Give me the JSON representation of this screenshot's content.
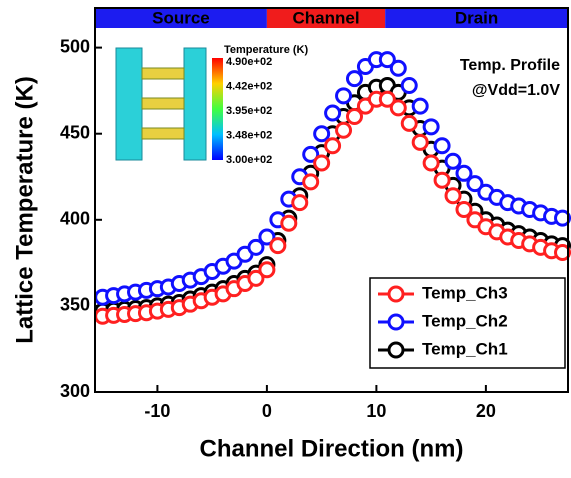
{
  "chart_data": {
    "type": "scatter",
    "x_label": "Channel Direction (nm)",
    "y_label": "Lattice Temperature (K)",
    "xlim": [
      -15.7,
      27.5
    ],
    "ylim": [
      300,
      523
    ],
    "xticks": [
      -10,
      0,
      10,
      20
    ],
    "yticks": [
      300,
      350,
      400,
      450,
      500
    ],
    "regions": [
      {
        "label": "Source",
        "color": "#1c1cf0",
        "x": [
          -15.7,
          0
        ]
      },
      {
        "label": "Channel",
        "color": "#f01c1c",
        "x": [
          0,
          10.8
        ]
      },
      {
        "label": "Drain",
        "color": "#1c1cf0",
        "x": [
          10.8,
          27.5
        ]
      }
    ],
    "annotation": [
      "Temp. Profile",
      "@Vdd=1.0V"
    ],
    "inset": {
      "title": "Temperature (K)",
      "colorbar_labels": [
        "4.90e+02",
        "4.42e+02",
        "3.95e+02",
        "3.48e+02",
        "3.00e+02"
      ]
    },
    "legend": "lower right",
    "x": [
      -15,
      -14,
      -13,
      -12,
      -11,
      -10,
      -9,
      -8,
      -7,
      -6,
      -5,
      -4,
      -3,
      -2,
      -1,
      0,
      1,
      2,
      3,
      4,
      5,
      6,
      7,
      8,
      9,
      10,
      11,
      12,
      13,
      14,
      15,
      16,
      17,
      18,
      19,
      20,
      21,
      22,
      23,
      24,
      25,
      26,
      27
    ],
    "series": [
      {
        "name": "Temp_Ch3",
        "color": "#ff2020",
        "values": [
          344,
          344.5,
          345,
          345.5,
          346,
          347,
          348,
          349,
          351,
          353,
          355,
          357,
          360,
          363,
          366,
          371,
          385,
          398,
          410,
          422,
          433,
          443,
          452,
          460,
          466,
          470,
          470,
          465,
          456,
          445,
          433,
          423,
          414,
          406,
          400,
          396,
          393,
          390,
          388,
          386,
          384,
          382,
          381
        ]
      },
      {
        "name": "Temp_Ch2",
        "color": "#1010ff",
        "values": [
          355,
          356,
          357,
          358,
          359,
          360,
          361,
          363,
          365,
          367,
          370,
          373,
          376,
          380,
          384,
          390,
          400,
          412,
          425,
          438,
          450,
          462,
          472,
          482,
          489,
          493,
          493,
          488,
          478,
          466,
          454,
          443,
          434,
          427,
          421,
          416,
          413,
          410,
          408,
          406,
          404,
          402,
          401
        ]
      },
      {
        "name": "Temp_Ch1",
        "color": "#000000",
        "values": [
          347,
          347.5,
          348,
          348.5,
          349,
          350,
          351,
          352,
          354,
          356,
          358,
          360,
          363,
          366,
          369,
          374,
          388,
          401,
          414,
          427,
          439,
          450,
          460,
          468,
          474,
          477,
          478,
          474,
          465,
          453,
          441,
          430,
          420,
          412,
          405,
          400,
          397,
          394,
          392,
          390,
          388,
          386,
          385
        ]
      }
    ]
  }
}
